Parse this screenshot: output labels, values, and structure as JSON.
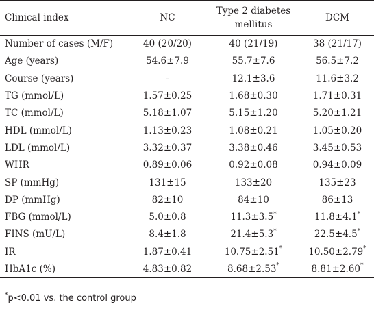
{
  "table": {
    "headers": [
      {
        "text": "Clinical index",
        "lines": [
          "Clinical index"
        ]
      },
      {
        "text": "NC",
        "lines": [
          "NC"
        ]
      },
      {
        "text": "Type 2 diabetes mellitus",
        "lines": [
          "Type 2 diabetes",
          "mellitus"
        ]
      },
      {
        "text": "DCM",
        "lines": [
          "DCM"
        ]
      }
    ],
    "rows": [
      {
        "index": "Number of cases (M/F)",
        "nc": "40 (20/20)",
        "t2dm": "40 (21/19)",
        "t2dm_mark": "",
        "dcm": "38 (21/17)",
        "dcm_mark": ""
      },
      {
        "index": "Age (years)",
        "nc": "54.6±7.9",
        "t2dm": "55.7±7.6",
        "t2dm_mark": "",
        "dcm": "56.5±7.2",
        "dcm_mark": ""
      },
      {
        "index": "Course (years)",
        "nc": "-",
        "t2dm": "12.1±3.6",
        "t2dm_mark": "",
        "dcm": "11.6±3.2",
        "dcm_mark": ""
      },
      {
        "index": "TG (mmol/L)",
        "nc": "1.57±0.25",
        "t2dm": "1.68±0.30",
        "t2dm_mark": "",
        "dcm": "1.71±0.31",
        "dcm_mark": ""
      },
      {
        "index": "TC (mmol/L)",
        "nc": "5.18±1.07",
        "t2dm": "5.15±1.20",
        "t2dm_mark": "",
        "dcm": "5.20±1.21",
        "dcm_mark": ""
      },
      {
        "index": "HDL (mmol/L)",
        "nc": "1.13±0.23",
        "t2dm": "1.08±0.21",
        "t2dm_mark": "",
        "dcm": "1.05±0.20",
        "dcm_mark": ""
      },
      {
        "index": "LDL (mmol/L)",
        "nc": "3.32±0.37",
        "t2dm": "3.38±0.46",
        "t2dm_mark": "",
        "dcm": "3.45±0.53",
        "dcm_mark": ""
      },
      {
        "index": "WHR",
        "nc": "0.89±0.06",
        "t2dm": "0.92±0.08",
        "t2dm_mark": "",
        "dcm": "0.94±0.09",
        "dcm_mark": ""
      },
      {
        "index": "SP (mmHg)",
        "nc": "131±15",
        "t2dm": "133±20",
        "t2dm_mark": "",
        "dcm": "135±23",
        "dcm_mark": ""
      },
      {
        "index": "DP (mmHg)",
        "nc": "82±10",
        "t2dm": "84±10",
        "t2dm_mark": "",
        "dcm": "86±13",
        "dcm_mark": ""
      },
      {
        "index": "FBG (mmol/L)",
        "nc": "5.0±0.8",
        "t2dm": "11.3±3.5",
        "t2dm_mark": "*",
        "dcm": "11.8±4.1",
        "dcm_mark": "*"
      },
      {
        "index": "FINS (mU/L)",
        "nc": "8.4±1.8",
        "t2dm": "21.4±5.3",
        "t2dm_mark": "*",
        "dcm": "22.5±4.5",
        "dcm_mark": "*"
      },
      {
        "index": "IR",
        "nc": "1.87±0.41",
        "t2dm": "10.75±2.51",
        "t2dm_mark": "*",
        "dcm": "10.50±2.79",
        "dcm_mark": "*"
      },
      {
        "index": "HbA1c (%)",
        "nc": "4.83±0.82",
        "t2dm": "8.68±2.53",
        "t2dm_mark": "*",
        "dcm": "8.81±2.60",
        "dcm_mark": "*"
      }
    ]
  },
  "footnote": {
    "mark": "*",
    "text": "p<0.01 vs. the control group"
  }
}
